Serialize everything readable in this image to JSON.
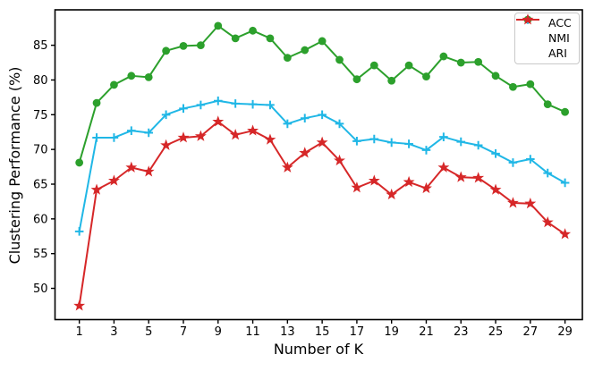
{
  "figure": {
    "background": "#ffffff",
    "text_color": "#000000",
    "spine_color": "#000000"
  },
  "chart_data": {
    "type": "line",
    "title": "",
    "xlabel": "Number of K",
    "ylabel": "Clustering Performance (%)",
    "x": [
      1,
      2,
      3,
      4,
      5,
      6,
      7,
      8,
      9,
      10,
      11,
      12,
      13,
      14,
      15,
      16,
      17,
      18,
      19,
      20,
      21,
      22,
      23,
      24,
      25,
      26,
      27,
      28,
      29
    ],
    "xticks": [
      1,
      3,
      5,
      7,
      9,
      11,
      13,
      15,
      17,
      19,
      21,
      23,
      25,
      27,
      29
    ],
    "yticks": [
      50,
      55,
      60,
      65,
      70,
      75,
      80,
      85
    ],
    "xlim": [
      -0.4,
      30.0
    ],
    "ylim": [
      45.5,
      90.1
    ],
    "grid": false,
    "legend": {
      "position": "upper right",
      "entries": [
        "ACC",
        "NMI",
        "ARI"
      ]
    },
    "series": [
      {
        "name": "ACC",
        "color": "#2ca02c",
        "marker": "circle",
        "values": [
          68.1,
          76.7,
          79.3,
          80.6,
          80.4,
          84.2,
          84.9,
          85.0,
          87.8,
          86.0,
          87.1,
          86.0,
          83.2,
          84.3,
          85.6,
          82.9,
          80.1,
          82.1,
          79.9,
          82.1,
          80.5,
          83.4,
          82.5,
          82.6,
          80.6,
          79.0,
          79.4,
          76.5,
          75.4
        ]
      },
      {
        "name": "NMI",
        "color": "#20b7e6",
        "marker": "plus",
        "values": [
          58.2,
          71.7,
          71.7,
          72.7,
          72.4,
          75.0,
          75.9,
          76.4,
          77.0,
          76.6,
          76.5,
          76.4,
          73.7,
          74.5,
          75.0,
          73.7,
          71.2,
          71.5,
          71.0,
          70.8,
          69.9,
          71.8,
          71.1,
          70.6,
          69.4,
          68.1,
          68.6,
          66.6,
          65.2
        ]
      },
      {
        "name": "ARI",
        "color": "#d62728",
        "marker": "star",
        "values": [
          47.5,
          64.2,
          65.5,
          67.4,
          66.8,
          70.6,
          71.7,
          71.9,
          74.0,
          72.1,
          72.7,
          71.4,
          67.4,
          69.5,
          71.0,
          68.4,
          64.5,
          65.5,
          63.5,
          65.3,
          64.4,
          67.4,
          66.0,
          65.9,
          64.2,
          62.3,
          62.2,
          59.5,
          57.8
        ]
      }
    ]
  }
}
